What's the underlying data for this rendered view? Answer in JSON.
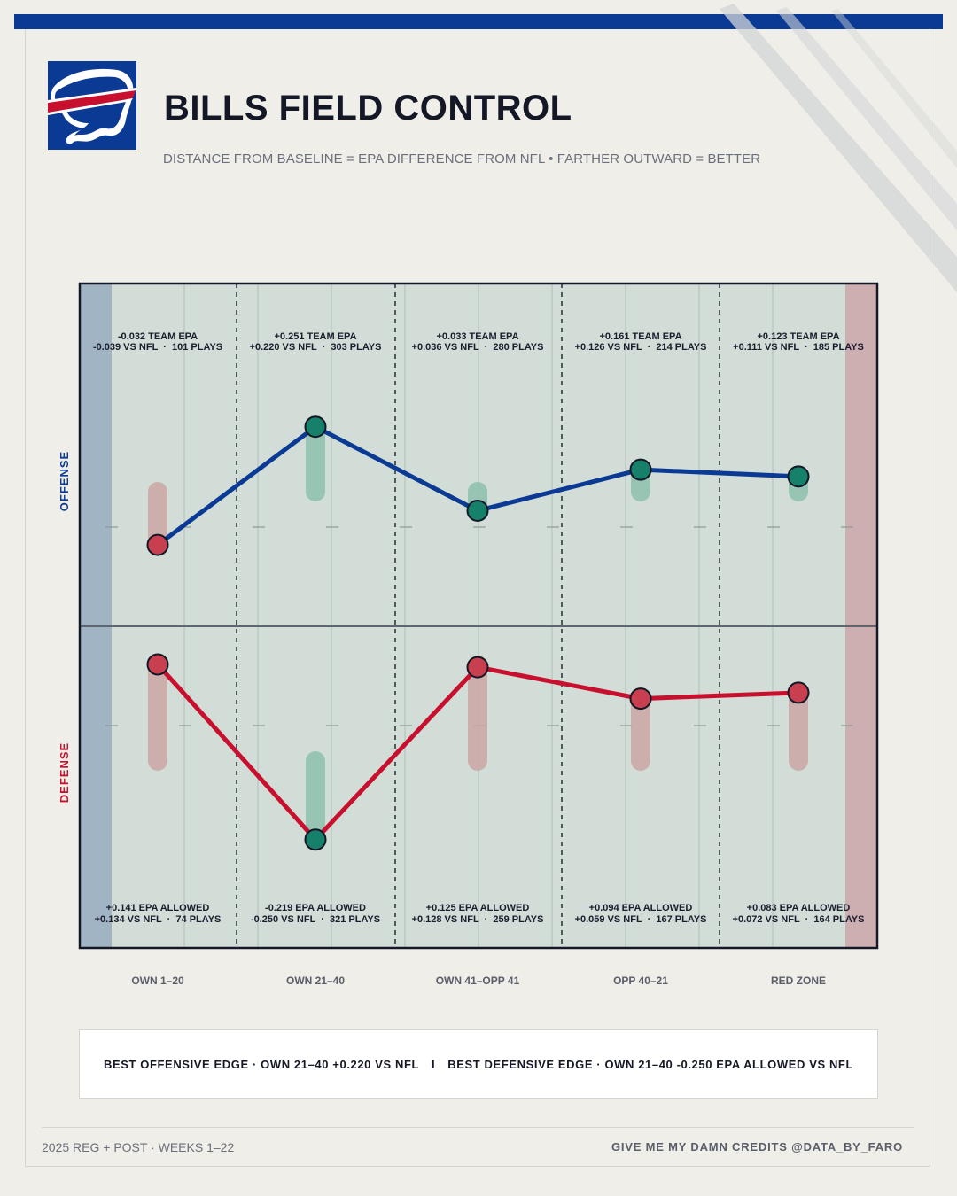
{
  "title": "BILLS FIELD CONTROL",
  "subtitle": "DISTANCE FROM BASELINE = EPA DIFFERENCE FROM NFL  •  FARTHER OUTWARD = BETTER",
  "colors": {
    "offense": "#0a3a94",
    "defense": "#c8102e",
    "good": "#17806a",
    "bad": "#c8404f",
    "field": "#d1ddd6",
    "own_endzone": "#a1b4c3",
    "opp_endzone": "#cdaeb1"
  },
  "chart_data": {
    "type": "line",
    "categories": [
      "OWN 1–20",
      "OWN 21–40",
      "OWN 41–OPP 41",
      "OPP 40–21",
      "RED ZONE"
    ],
    "panels": [
      {
        "label": "OFFENSE",
        "color": "#0a3a94"
      },
      {
        "label": "DEFENSE",
        "color": "#c8102e"
      }
    ],
    "series": [
      {
        "name": "OFFENSE",
        "team_epa": [
          -0.032,
          0.251,
          0.033,
          0.161,
          0.123
        ],
        "vs_nfl": [
          -0.039,
          0.22,
          0.036,
          0.126,
          0.111
        ],
        "plays": [
          101,
          303,
          280,
          214,
          185
        ],
        "line1": [
          "-0.032 TEAM EPA",
          "+0.251 TEAM EPA",
          "+0.033 TEAM EPA",
          "+0.161 TEAM EPA",
          "+0.123 TEAM EPA"
        ],
        "line2": [
          "-0.039 VS NFL  ·  101 PLAYS",
          "+0.220 VS NFL  ·  303 PLAYS",
          "+0.036 VS NFL  ·  280 PLAYS",
          "+0.126 VS NFL  ·  214 PLAYS",
          "+0.111 VS NFL  ·  185 PLAYS"
        ]
      },
      {
        "name": "DEFENSE",
        "epa_allowed": [
          0.141,
          -0.219,
          0.125,
          0.094,
          0.083
        ],
        "vs_nfl": [
          0.134,
          -0.25,
          0.128,
          0.059,
          0.072
        ],
        "plays": [
          74,
          321,
          259,
          167,
          164
        ],
        "line1": [
          "+0.141 EPA ALLOWED",
          "-0.219 EPA ALLOWED",
          "+0.125 EPA ALLOWED",
          "+0.094 EPA ALLOWED",
          "+0.083 EPA ALLOWED"
        ],
        "line2": [
          "+0.134 VS NFL  ·  74 PLAYS",
          "-0.250 VS NFL  ·  321 PLAYS",
          "+0.128 VS NFL  ·  259 PLAYS",
          "+0.059 VS NFL  ·  167 PLAYS",
          "+0.072 VS NFL  ·  164 PLAYS"
        ]
      }
    ]
  },
  "summary": {
    "offense": "BEST OFFENSIVE EDGE  ·  OWN 21–40 +0.220 VS NFL",
    "separator": "I",
    "defense": "BEST DEFENSIVE EDGE  ·  OWN 21–40 -0.250 EPA ALLOWED VS NFL"
  },
  "footer": {
    "left": "2025 REG + POST  ·  WEEKS 1–22",
    "right": "GIVE ME MY DAMN CREDITS @DATA_BY_FARO"
  },
  "logo": {
    "name": "buffalo-bills-logo",
    "bg": "#0a3a94"
  }
}
